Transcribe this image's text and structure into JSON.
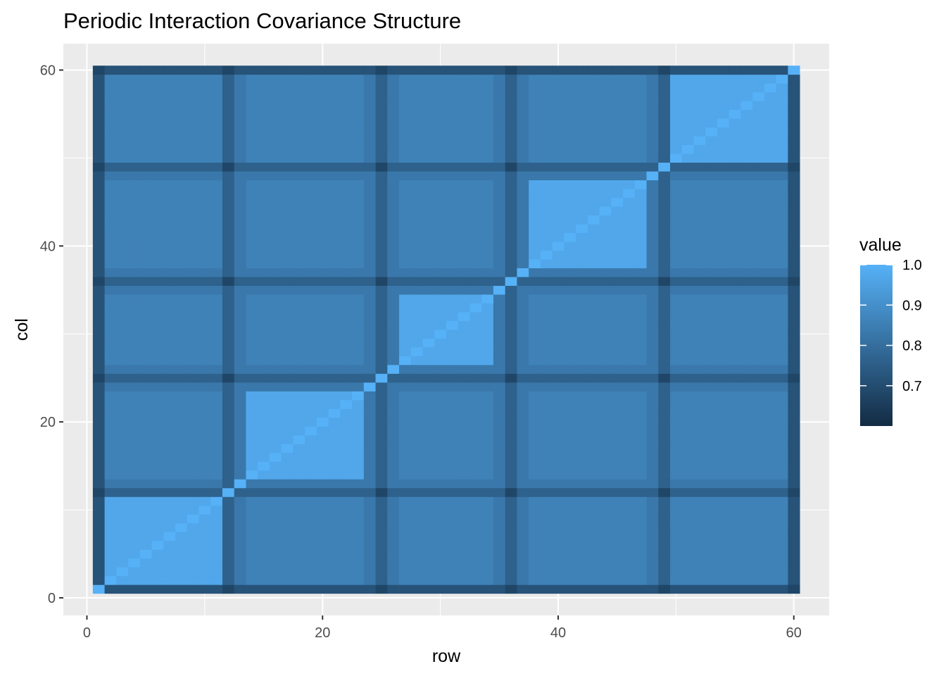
{
  "chart_data": {
    "type": "heatmap",
    "title": "Periodic Interaction Covariance Structure",
    "xlabel": "row",
    "ylabel": "col",
    "n": 60,
    "xlim": [
      -2,
      63
    ],
    "ylim": [
      -2,
      63
    ],
    "x_ticks": [
      0,
      20,
      40,
      60
    ],
    "y_ticks": [
      0,
      20,
      40,
      60
    ],
    "x_tick_labels": [
      "0",
      "20",
      "40",
      "60"
    ],
    "y_tick_labels": [
      "0",
      "20",
      "40",
      "60"
    ],
    "grid": true,
    "panel_background": "#ebebeb",
    "value_range": [
      0.6,
      1.0
    ],
    "diagonal_value": 1.0,
    "block_within_value": 0.97,
    "block_between_value": 0.86,
    "band_indices": [
      1,
      12,
      25,
      36,
      49
    ],
    "band_value": 0.76,
    "band_cross_value": 0.68,
    "edge_indices": [
      1,
      60
    ],
    "edge_value": 0.72,
    "transition_indices": [
      13,
      24,
      26,
      35,
      37,
      48
    ],
    "transition_value": 0.83,
    "block_boundaries": [
      2,
      11,
      13,
      24,
      26,
      35,
      37,
      48,
      50,
      59
    ],
    "legend": {
      "title": "value",
      "position": "right",
      "color_low": "#132b43",
      "color_high": "#56b1f7",
      "breaks": [
        0.7,
        0.8,
        0.9,
        1.0
      ],
      "labels": [
        "0.7",
        "0.8",
        "0.9",
        "1.0"
      ]
    }
  }
}
